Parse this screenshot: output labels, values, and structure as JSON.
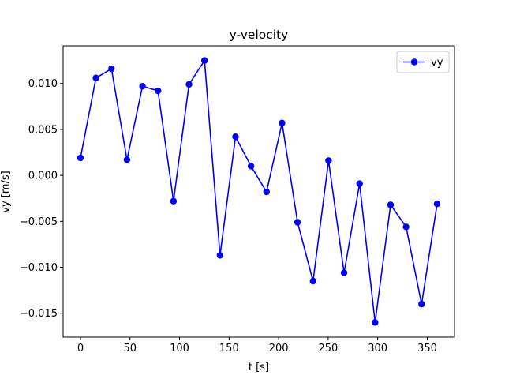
{
  "chart_data": {
    "type": "line",
    "title": "y-velocity",
    "xlabel": "t [s]",
    "ylabel": "vy [m/s]",
    "xlim": [
      -17.5,
      377.5
    ],
    "ylim": [
      -0.0176,
      0.0141
    ],
    "xticks": [
      0,
      50,
      100,
      150,
      200,
      250,
      300,
      350
    ],
    "xtick_labels": [
      "0",
      "50",
      "100",
      "150",
      "200",
      "250",
      "300",
      "350"
    ],
    "yticks": [
      -0.015,
      -0.01,
      -0.005,
      0.0,
      0.005,
      0.01
    ],
    "ytick_labels": [
      "−0.015",
      "−0.010",
      "−0.005",
      "0.000",
      "0.005",
      "0.010"
    ],
    "grid": false,
    "legend_position": "top-right",
    "series": [
      {
        "name": "vy",
        "color": "#0000ff",
        "marker": "circle",
        "x": [
          0,
          15.65,
          31.3,
          46.95,
          62.6,
          78.25,
          93.9,
          109.55,
          125.2,
          140.85,
          156.5,
          172.15,
          187.8,
          203.45,
          219.1,
          234.75,
          250.4,
          266.05,
          281.7,
          297.35,
          313.0,
          328.65,
          344.3,
          359.95
        ],
        "values": [
          0.0019,
          0.0106,
          0.0116,
          0.0017,
          0.0097,
          0.0092,
          -0.0028,
          0.0099,
          0.0125,
          -0.0087,
          0.0042,
          0.001,
          -0.0018,
          0.0057,
          -0.0051,
          -0.0115,
          0.0016,
          -0.0106,
          -0.0009,
          -0.016,
          -0.0032,
          -0.0056,
          -0.014,
          -0.0031
        ]
      }
    ]
  }
}
